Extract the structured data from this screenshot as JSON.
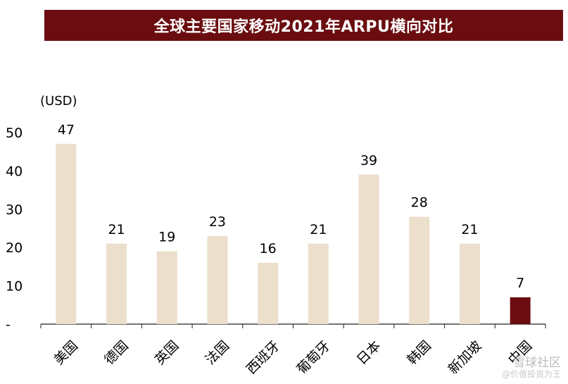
{
  "title": "全球主要国家移动2021年ARPU横向对比",
  "chart_data": {
    "type": "bar",
    "title": "全球主要国家移动2021年ARPU横向对比",
    "unit_label": "(USD)",
    "categories": [
      "美国",
      "德国",
      "英国",
      "法国",
      "西班牙",
      "葡萄牙",
      "日本",
      "韩国",
      "新加坡",
      "中国"
    ],
    "values": [
      47,
      21,
      19,
      23,
      16,
      21,
      39,
      28,
      21,
      7
    ],
    "ylim": [
      0,
      50
    ],
    "yticks": [
      "-",
      "10",
      "20",
      "30",
      "40",
      "50"
    ],
    "colors": {
      "default": "#ecdfcb",
      "highlight": "#6b0d10"
    },
    "highlight_category": "中国",
    "grid": false,
    "legend": "none"
  },
  "watermark": {
    "main": "雪球社区",
    "sub": "@价值投资为王"
  }
}
